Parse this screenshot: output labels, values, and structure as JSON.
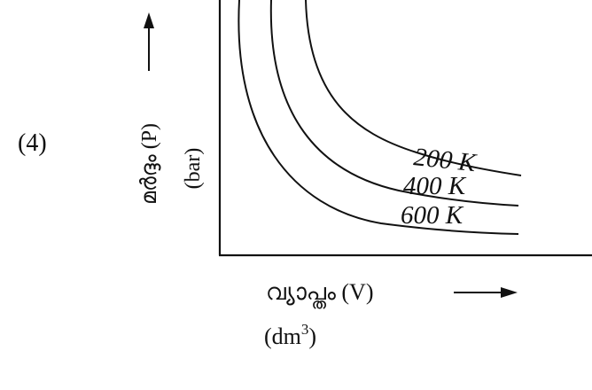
{
  "option_label": "(4)",
  "y_axis": {
    "label": "മർദ്ദം (P)",
    "unit": "(bar)"
  },
  "x_axis": {
    "label": "വ്യാപ്തം (V)",
    "unit_base": "(dm",
    "unit_exp": "3",
    "unit_close": ")"
  },
  "curves": [
    {
      "label": "200 K"
    },
    {
      "label": "400 K"
    },
    {
      "label": "600 K"
    }
  ]
}
